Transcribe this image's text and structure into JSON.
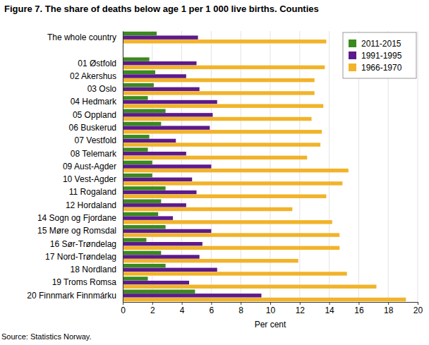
{
  "chart_data": {
    "type": "bar",
    "orientation": "horizontal",
    "title": "Figure 7. The share of deaths below age 1 per 1 000 live births. Counties",
    "x_label": "Per cent",
    "source": "Source: Statistics Norway.",
    "categories": [
      "The whole country",
      null,
      "01 Østfold",
      "02 Akershus",
      "03 Oslo",
      "04 Hedmark",
      "05 Oppland",
      "06 Buskerud",
      "07 Vestfold",
      "08 Telemark",
      "09 Aust-Agder",
      "10 Vest-Agder",
      "11 Rogaland",
      "12 Hordaland",
      "14 Sogn og Fjordane",
      "15 Møre og Romsdal",
      "16 Sør-Trøndelag",
      "17 Nord-Trøndelag",
      "18 Nordland",
      "19 Troms Romsa",
      "20 Finnmark Finnmárku"
    ],
    "series": [
      {
        "name": "2011-2015",
        "color": "#3a8a1f",
        "values": [
          2.3,
          null,
          1.8,
          2.2,
          2.1,
          1.7,
          2.9,
          2.6,
          1.8,
          1.7,
          2.0,
          2.0,
          2.9,
          2.6,
          2.4,
          2.9,
          1.6,
          2.6,
          2.9,
          1.7,
          4.9
        ]
      },
      {
        "name": "1991-1995",
        "color": "#5c1a8c",
        "values": [
          5.1,
          null,
          5.0,
          4.3,
          5.2,
          6.4,
          6.1,
          5.9,
          3.6,
          4.3,
          6.0,
          4.7,
          5.0,
          4.3,
          3.4,
          6.0,
          5.4,
          5.2,
          6.4,
          4.5,
          9.4
        ]
      },
      {
        "name": "1966-1970",
        "color": "#f2b32a",
        "values": [
          13.8,
          null,
          13.7,
          13.0,
          13.0,
          13.6,
          12.8,
          13.5,
          13.4,
          12.5,
          15.3,
          14.9,
          13.8,
          11.5,
          14.2,
          14.7,
          14.7,
          11.9,
          15.2,
          17.2,
          19.2
        ]
      }
    ],
    "xlim": [
      0,
      20
    ],
    "xticks": [
      0,
      2,
      4,
      6,
      8,
      10,
      12,
      14,
      16,
      18,
      20
    ],
    "grid": true,
    "legend": "top-right"
  }
}
